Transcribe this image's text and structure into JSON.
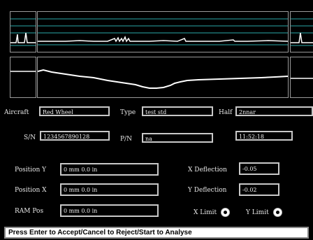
{
  "fields": {
    "aircraft": {
      "label": "Aircraft",
      "value": "Red Wheel"
    },
    "type": {
      "label": "Type",
      "value": "test std"
    },
    "half": {
      "label": "Half",
      "value": "2nnar"
    },
    "sn": {
      "label": "S/N",
      "value": "1234567890128"
    },
    "pn": {
      "label": "P/N",
      "value": "na"
    },
    "time": {
      "value": "11:52:18"
    }
  },
  "positions": {
    "position_y": {
      "label": "Position Y",
      "value": "0 mm  0.0 in"
    },
    "position_x": {
      "label": "Position X",
      "value": "0 mm  0.0 in"
    },
    "ram_pos": {
      "label": "RAM Pos",
      "value": "0 mm  0.0 in"
    }
  },
  "deflection": {
    "x": {
      "label": "X Deflection",
      "value": "-0.05"
    },
    "y": {
      "label": "Y Deflection",
      "value": "-0.02"
    }
  },
  "limits": {
    "x_label": "X Limit",
    "y_label": "Y Limit"
  },
  "status": {
    "text": "Press Enter to Accept/Cancel to Reject/Start to Analyse"
  },
  "colors": {
    "grid_line": "#2aa7a7",
    "trace": "#ffffff"
  }
}
